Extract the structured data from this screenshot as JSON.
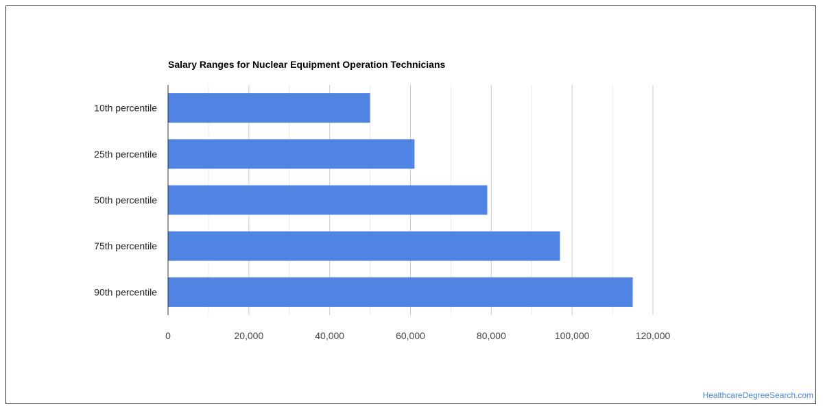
{
  "chart_data": {
    "type": "bar",
    "orientation": "horizontal",
    "title": "Salary Ranges for Nuclear Equipment Operation Technicians",
    "categories": [
      "10th percentile",
      "25th percentile",
      "50th percentile",
      "75th percentile",
      "90th percentile"
    ],
    "values": [
      50000,
      61000,
      79000,
      97000,
      115000
    ],
    "xlabel": "",
    "ylabel": "",
    "xlim": [
      0,
      120000
    ],
    "x_ticks": [
      0,
      20000,
      40000,
      60000,
      80000,
      100000,
      120000
    ],
    "x_tick_labels": [
      "0",
      "20,000",
      "40,000",
      "60,000",
      "80,000",
      "100,000",
      "120,000"
    ],
    "grid": true,
    "bar_color": "#5084e3",
    "gridline_color": "#cccccc",
    "minor_gridline_color": "#ebebeb",
    "legend": "none"
  },
  "watermark": "HealthcareDegreeSearch.com"
}
